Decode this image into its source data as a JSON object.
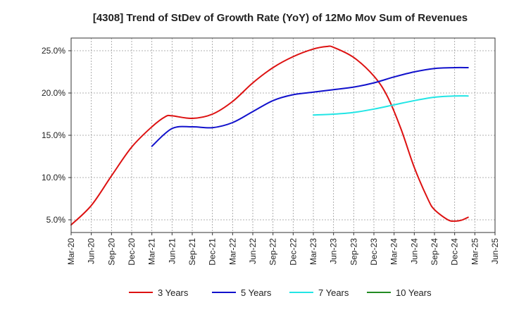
{
  "chart_data": {
    "type": "line",
    "title": "[4308]  Trend of StDev of Growth Rate (YoY) of 12Mo Mov Sum of Revenues",
    "xlabel": "",
    "ylabel": "",
    "ylim": [
      3.5,
      26.5
    ],
    "y_ticks": [
      5,
      10,
      15,
      20,
      25
    ],
    "y_tick_labels": [
      "5.0%",
      "10.0%",
      "15.0%",
      "20.0%",
      "25.0%"
    ],
    "x_range": [
      0,
      63
    ],
    "x_ticks": [
      0,
      3,
      6,
      9,
      12,
      15,
      18,
      21,
      24,
      27,
      30,
      33,
      36,
      39,
      42,
      45,
      48,
      51,
      54,
      57,
      60,
      63
    ],
    "x_tick_labels": [
      "Mar-20",
      "Jun-20",
      "Sep-20",
      "Dec-20",
      "Mar-21",
      "Jun-21",
      "Sep-21",
      "Dec-21",
      "Mar-22",
      "Jun-22",
      "Sep-22",
      "Dec-22",
      "Mar-23",
      "Jun-23",
      "Sep-23",
      "Dec-23",
      "Mar-24",
      "Jun-24",
      "Sep-24",
      "Dec-24",
      "Mar-25",
      "Jun-25"
    ],
    "grid": true,
    "legend_position": "bottom",
    "series": [
      {
        "name": "3 Years",
        "color": "#dd1111",
        "points": [
          [
            0,
            4.4
          ],
          [
            3,
            6.7
          ],
          [
            6,
            10.2
          ],
          [
            9,
            13.6
          ],
          [
            12,
            16.0
          ],
          [
            14,
            17.2
          ],
          [
            15,
            17.3
          ],
          [
            18,
            17.0
          ],
          [
            21,
            17.5
          ],
          [
            24,
            19.0
          ],
          [
            27,
            21.2
          ],
          [
            30,
            23.0
          ],
          [
            33,
            24.3
          ],
          [
            36,
            25.2
          ],
          [
            38,
            25.5
          ],
          [
            39,
            25.4
          ],
          [
            42,
            24.2
          ],
          [
            45,
            22.0
          ],
          [
            47,
            19.6
          ],
          [
            49,
            15.8
          ],
          [
            51,
            11.2
          ],
          [
            53,
            7.5
          ],
          [
            54,
            6.2
          ],
          [
            56,
            5.0
          ],
          [
            57,
            4.85
          ],
          [
            58,
            4.95
          ],
          [
            59,
            5.3
          ]
        ]
      },
      {
        "name": "5 Years",
        "color": "#1111cc",
        "points": [
          [
            12,
            13.7
          ],
          [
            15,
            15.8
          ],
          [
            18,
            16.0
          ],
          [
            21,
            15.9
          ],
          [
            24,
            16.5
          ],
          [
            27,
            17.8
          ],
          [
            30,
            19.1
          ],
          [
            33,
            19.8
          ],
          [
            36,
            20.1
          ],
          [
            39,
            20.4
          ],
          [
            42,
            20.7
          ],
          [
            45,
            21.2
          ],
          [
            48,
            21.9
          ],
          [
            51,
            22.5
          ],
          [
            54,
            22.9
          ],
          [
            57,
            23.0
          ],
          [
            59,
            23.0
          ]
        ]
      },
      {
        "name": "7 Years",
        "color": "#22e5e5",
        "points": [
          [
            36,
            17.4
          ],
          [
            39,
            17.5
          ],
          [
            42,
            17.7
          ],
          [
            45,
            18.1
          ],
          [
            48,
            18.6
          ],
          [
            51,
            19.1
          ],
          [
            54,
            19.5
          ],
          [
            57,
            19.65
          ],
          [
            59,
            19.65
          ]
        ]
      },
      {
        "name": "10 Years",
        "color": "#228b22",
        "points": []
      }
    ]
  }
}
